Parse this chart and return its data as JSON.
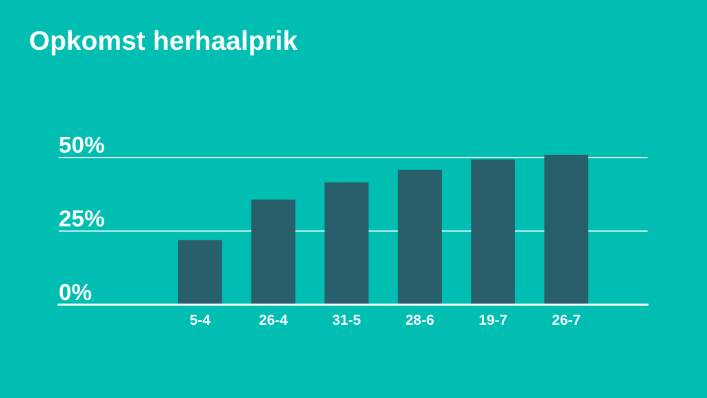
{
  "chart_data": {
    "type": "bar",
    "title": "Opkomst herhaalprik",
    "categories": [
      "5-4",
      "26-4",
      "31-5",
      "28-6",
      "19-7",
      "26-7"
    ],
    "values": [
      22,
      35.7,
      41.5,
      45.8,
      49.3,
      50.9
    ],
    "color": "#285f6b",
    "ylim": [
      0,
      50.9
    ],
    "yticks": [
      {
        "value": 0,
        "label": "0%"
      },
      {
        "value": 25,
        "label": "25%"
      },
      {
        "value": 50,
        "label": "50%"
      }
    ],
    "grid": "y"
  }
}
